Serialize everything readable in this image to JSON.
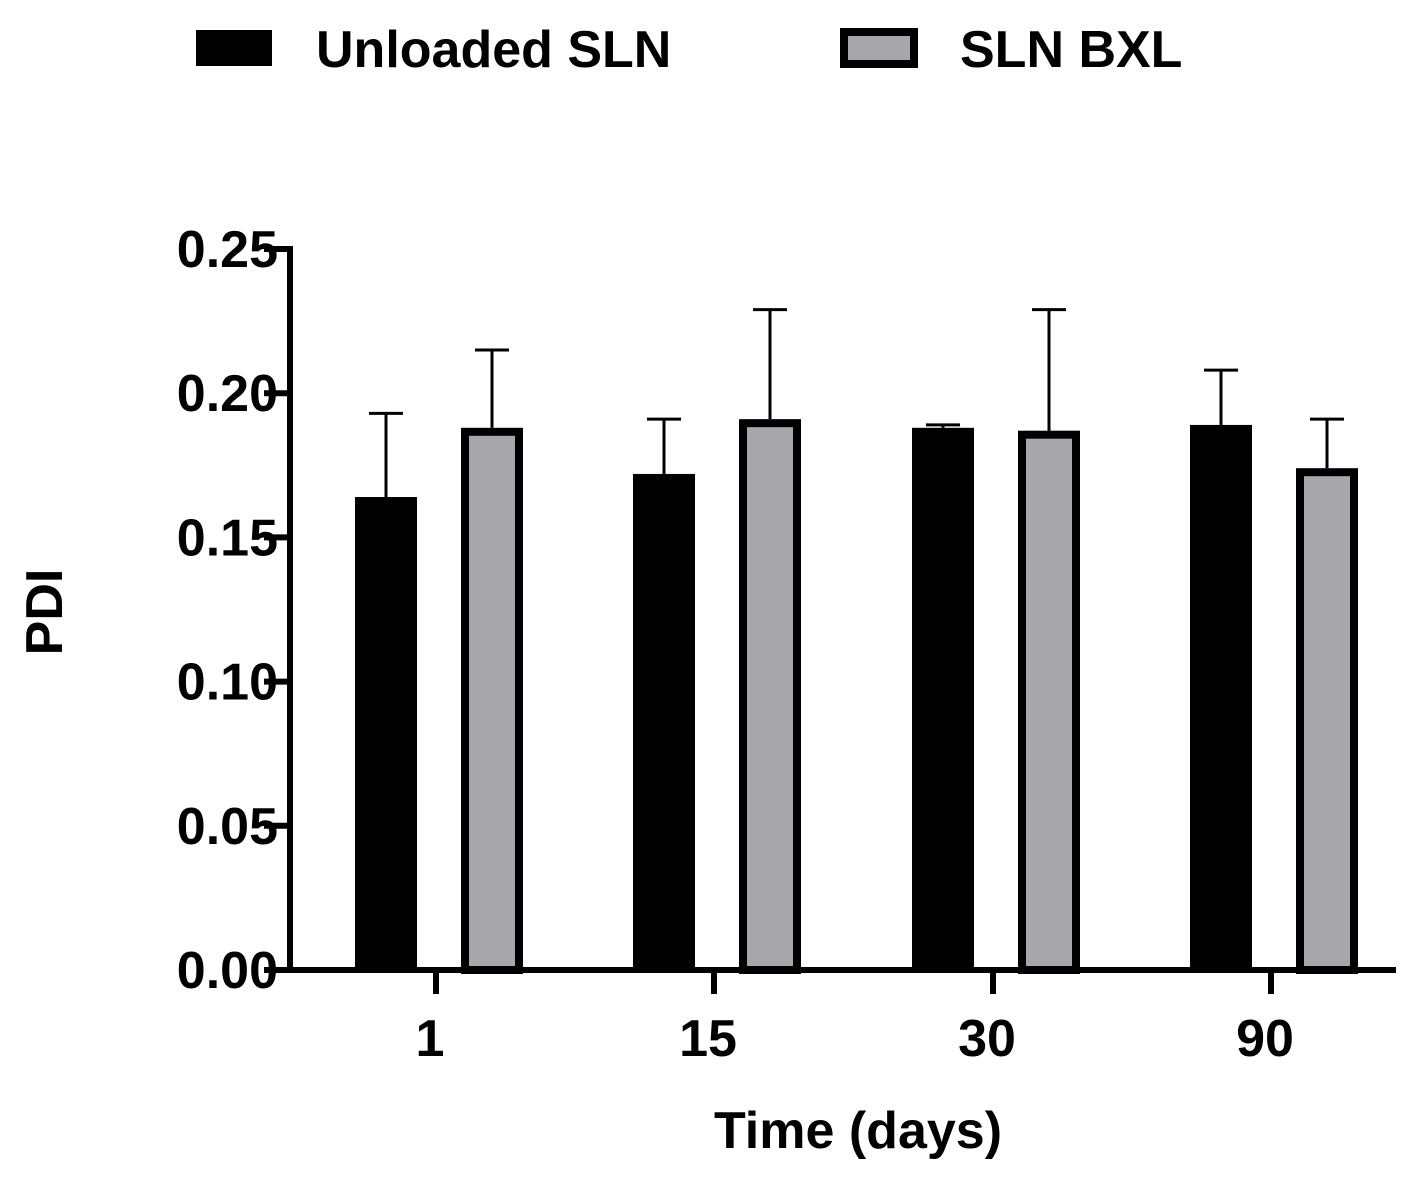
{
  "chart_data": {
    "type": "bar",
    "title": "",
    "xlabel": "Time (days)",
    "ylabel": "PDI",
    "categories": [
      "1",
      "15",
      "30",
      "90"
    ],
    "ylim": [
      0,
      0.25
    ],
    "yticks": [
      0.0,
      0.05,
      0.1,
      0.15,
      0.2,
      0.25
    ],
    "ytick_labels": [
      "0.00",
      "0.05",
      "0.10",
      "0.15",
      "0.20",
      "0.25"
    ],
    "legend_position": "top",
    "grid": false,
    "error_bars": "upper only",
    "series": [
      {
        "name": "Unloaded SLN",
        "color": "#000000",
        "values": [
          0.164,
          0.172,
          0.188,
          0.189
        ],
        "errors": [
          0.029,
          0.019,
          0.001,
          0.019
        ]
      },
      {
        "name": "SLN BXL",
        "color": "#a7a6ab",
        "values": [
          0.188,
          0.191,
          0.187,
          0.174
        ],
        "errors": [
          0.027,
          0.038,
          0.042,
          0.017
        ]
      }
    ]
  }
}
